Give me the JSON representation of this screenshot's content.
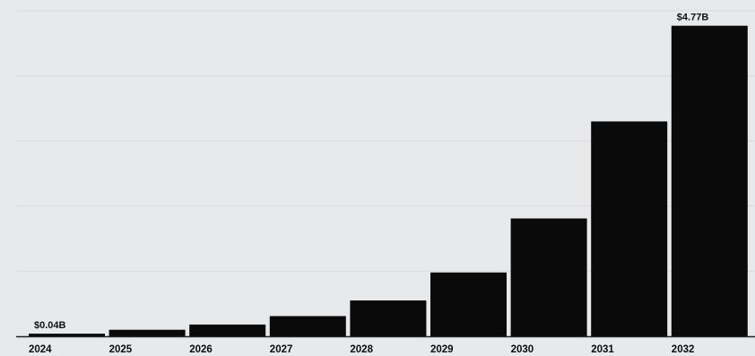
{
  "chart_data": {
    "type": "bar",
    "title": "",
    "xlabel": "",
    "ylabel": "",
    "categories": [
      "2024",
      "2025",
      "2026",
      "2027",
      "2028",
      "2029",
      "2030",
      "2031",
      "2032"
    ],
    "values": [
      0.04,
      0.1,
      0.18,
      0.31,
      0.55,
      0.98,
      1.81,
      3.3,
      4.77
    ],
    "data_labels": {
      "0": "$0.04B",
      "8": "$4.77B"
    },
    "ylim": [
      0,
      5
    ],
    "grid": true,
    "legend": "none",
    "colors": {
      "bar": "#0a0a0a",
      "background": "#e8e9eb",
      "grid": "#d8dadd",
      "axis": "#222222"
    }
  }
}
